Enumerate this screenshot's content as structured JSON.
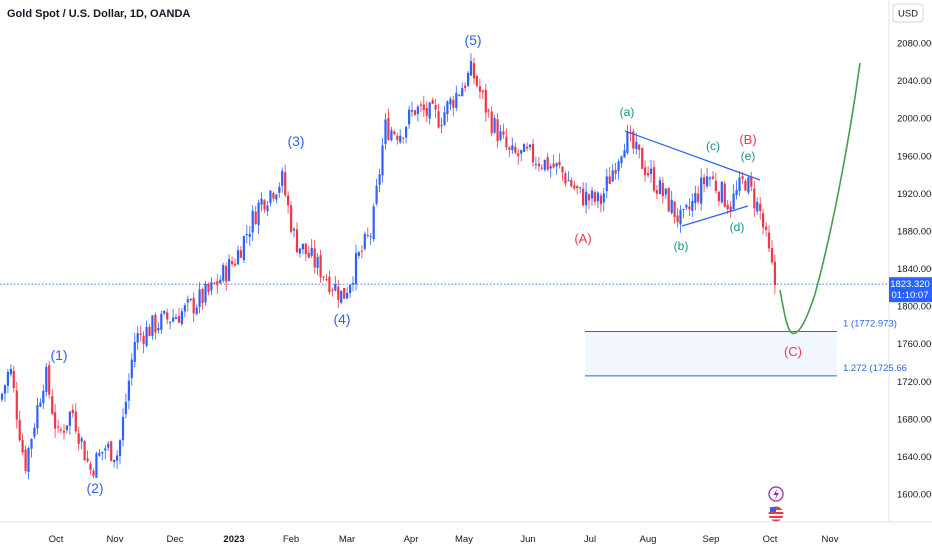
{
  "chart_data": {
    "type": "candlestick",
    "title": "Gold Spot / U.S. Dollar, 1D, OANDA",
    "currency_label": "USD",
    "y_ticks": [
      1600,
      1640,
      1680,
      1720,
      1760,
      1800,
      1840,
      1880,
      1920,
      1960,
      2000,
      2040,
      2080
    ],
    "ylim": [
      1577,
      2100
    ],
    "x_ticks": [
      {
        "label": "Oct",
        "bold": false
      },
      {
        "label": "Nov",
        "bold": false
      },
      {
        "label": "Dec",
        "bold": false
      },
      {
        "label": "2023",
        "bold": true
      },
      {
        "label": "Feb",
        "bold": false
      },
      {
        "label": "Mar",
        "bold": false
      },
      {
        "label": "Apr",
        "bold": false
      },
      {
        "label": "May",
        "bold": false
      },
      {
        "label": "Jun",
        "bold": false
      },
      {
        "label": "Jul",
        "bold": false
      },
      {
        "label": "Aug",
        "bold": false
      },
      {
        "label": "Sep",
        "bold": false
      },
      {
        "label": "Oct",
        "bold": false
      },
      {
        "label": "Nov",
        "bold": false
      }
    ],
    "anchors": [
      [
        0,
        1700
      ],
      [
        10,
        1735
      ],
      [
        25,
        1630
      ],
      [
        45,
        1730
      ],
      [
        58,
        1660
      ],
      [
        72,
        1690
      ],
      [
        90,
        1625
      ],
      [
        105,
        1650
      ],
      [
        118,
        1642
      ],
      [
        135,
        1765
      ],
      [
        155,
        1780
      ],
      [
        185,
        1795
      ],
      [
        210,
        1815
      ],
      [
        235,
        1850
      ],
      [
        260,
        1910
      ],
      [
        282,
        1935
      ],
      [
        295,
        1870
      ],
      [
        320,
        1840
      ],
      [
        343,
        1810
      ],
      [
        358,
        1850
      ],
      [
        372,
        1880
      ],
      [
        385,
        1990
      ],
      [
        400,
        1985
      ],
      [
        415,
        2010
      ],
      [
        440,
        2000
      ],
      [
        472,
        2050
      ],
      [
        490,
        2000
      ],
      [
        510,
        1960
      ],
      [
        530,
        1960
      ],
      [
        560,
        1945
      ],
      [
        580,
        1918
      ],
      [
        600,
        1910
      ],
      [
        625,
        1980
      ],
      [
        650,
        1940
      ],
      [
        682,
        1888
      ],
      [
        708,
        1940
      ],
      [
        730,
        1908
      ],
      [
        745,
        1935
      ],
      [
        760,
        1900
      ],
      [
        775,
        1823
      ]
    ],
    "last_price": "1823.320",
    "countdown": "01:10:07",
    "wave_labels": [
      {
        "text": "(1)",
        "style": "blue"
      },
      {
        "text": "(2)",
        "style": "blue"
      },
      {
        "text": "(3)",
        "style": "blue"
      },
      {
        "text": "(4)",
        "style": "blue"
      },
      {
        "text": "(5)",
        "style": "blue"
      },
      {
        "text": "(a)",
        "style": "green"
      },
      {
        "text": "(b)",
        "style": "green"
      },
      {
        "text": "(c)",
        "style": "green"
      },
      {
        "text": "(d)",
        "style": "green"
      },
      {
        "text": "(e)",
        "style": "green"
      },
      {
        "text": "(A)",
        "style": "red"
      },
      {
        "text": "(B)",
        "style": "red"
      },
      {
        "text": "(C)",
        "style": "red"
      }
    ],
    "fib_levels": [
      {
        "label": "1 (1772.973)",
        "value": 1772.973
      },
      {
        "label": "1.272 (1725.66",
        "value": 1725.66
      }
    ],
    "colors": {
      "up": "#2962ff",
      "down": "#f23645",
      "projection": "#43a047",
      "triangle": "#2962ff",
      "last_price": "#2962ff"
    }
  }
}
